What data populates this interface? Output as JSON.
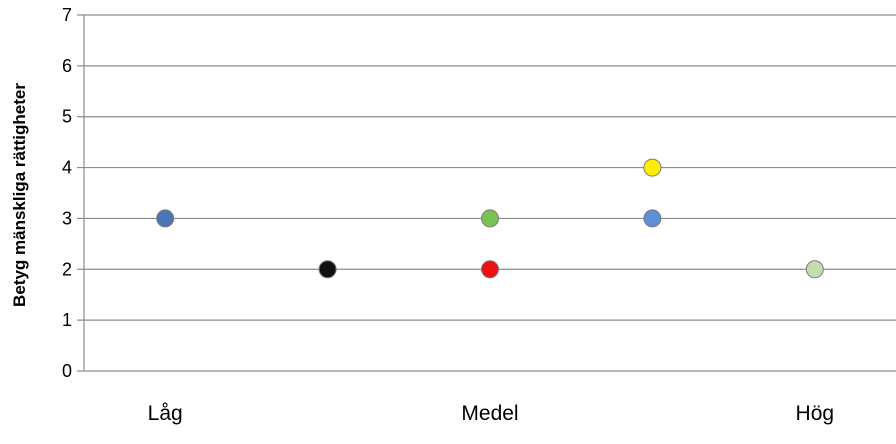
{
  "chart_data": {
    "type": "scatter",
    "title": "",
    "xlabel": "",
    "ylabel": "Betyg mänskliga rättigheter",
    "ylim": [
      0,
      7
    ],
    "yticks": [
      0,
      1,
      2,
      3,
      4,
      5,
      6,
      7
    ],
    "grid": true,
    "legend": "none",
    "x_categories": [
      "Låg",
      "Medel",
      "Hög"
    ],
    "x_category_positions": [
      1,
      3,
      5
    ],
    "xlim": [
      0.5,
      5.5
    ],
    "points": [
      {
        "x": 1.0,
        "y": 3,
        "color": "#4a77b4"
      },
      {
        "x": 2.0,
        "y": 2,
        "color": "#111111"
      },
      {
        "x": 3.0,
        "y": 3,
        "color": "#77c155"
      },
      {
        "x": 3.0,
        "y": 2,
        "color": "#ee1111"
      },
      {
        "x": 4.0,
        "y": 4,
        "color": "#ffee00"
      },
      {
        "x": 4.0,
        "y": 3,
        "color": "#5b8fd6"
      },
      {
        "x": 5.0,
        "y": 2,
        "color": "#c5dcae"
      }
    ]
  }
}
